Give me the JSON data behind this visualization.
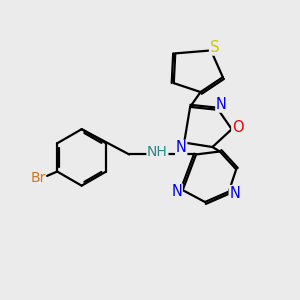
{
  "bg_color": "#ebebeb",
  "atom_colors": {
    "C": "#000000",
    "N": "#0000ee",
    "O": "#ee0000",
    "S": "#cccc00",
    "Br": "#cc7722",
    "NH": "#2a8a8a"
  },
  "bond_color": "#000000",
  "bond_width": 1.6,
  "font_size": 10.5
}
